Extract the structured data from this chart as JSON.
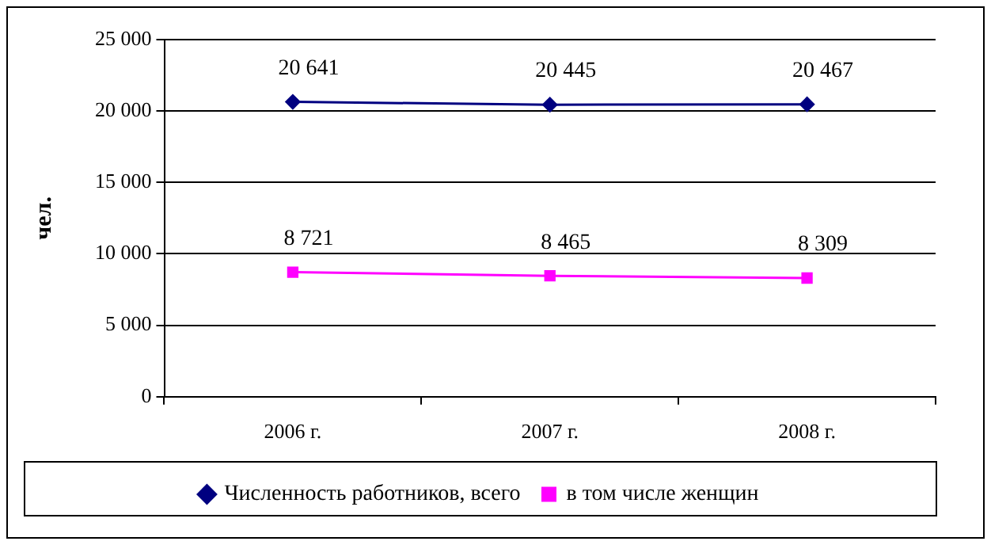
{
  "chart_data": {
    "type": "line",
    "ylabel": "чел.",
    "categories": [
      "2006 г.",
      "2007 г.",
      "2008 г."
    ],
    "series": [
      {
        "name": "Численность работников, всего",
        "color": "#000080",
        "marker": "diamond",
        "values": [
          20641,
          20445,
          20467
        ],
        "value_labels": [
          "20 641",
          "20 445",
          "20 467"
        ]
      },
      {
        "name": "в том числе женщин",
        "color": "#ff00ff",
        "marker": "square",
        "values": [
          8721,
          8465,
          8309
        ],
        "value_labels": [
          "8 721",
          "8 465",
          "8 309"
        ]
      }
    ],
    "ylim": [
      0,
      25000
    ],
    "yticks": [
      {
        "value": 0,
        "label": "0"
      },
      {
        "value": 5000,
        "label": "5 000"
      },
      {
        "value": 10000,
        "label": "10 000"
      },
      {
        "value": 15000,
        "label": "15 000"
      },
      {
        "value": 20000,
        "label": "20 000"
      },
      {
        "value": 25000,
        "label": "25 000"
      }
    ],
    "grid": "y",
    "legend": "bottom"
  }
}
